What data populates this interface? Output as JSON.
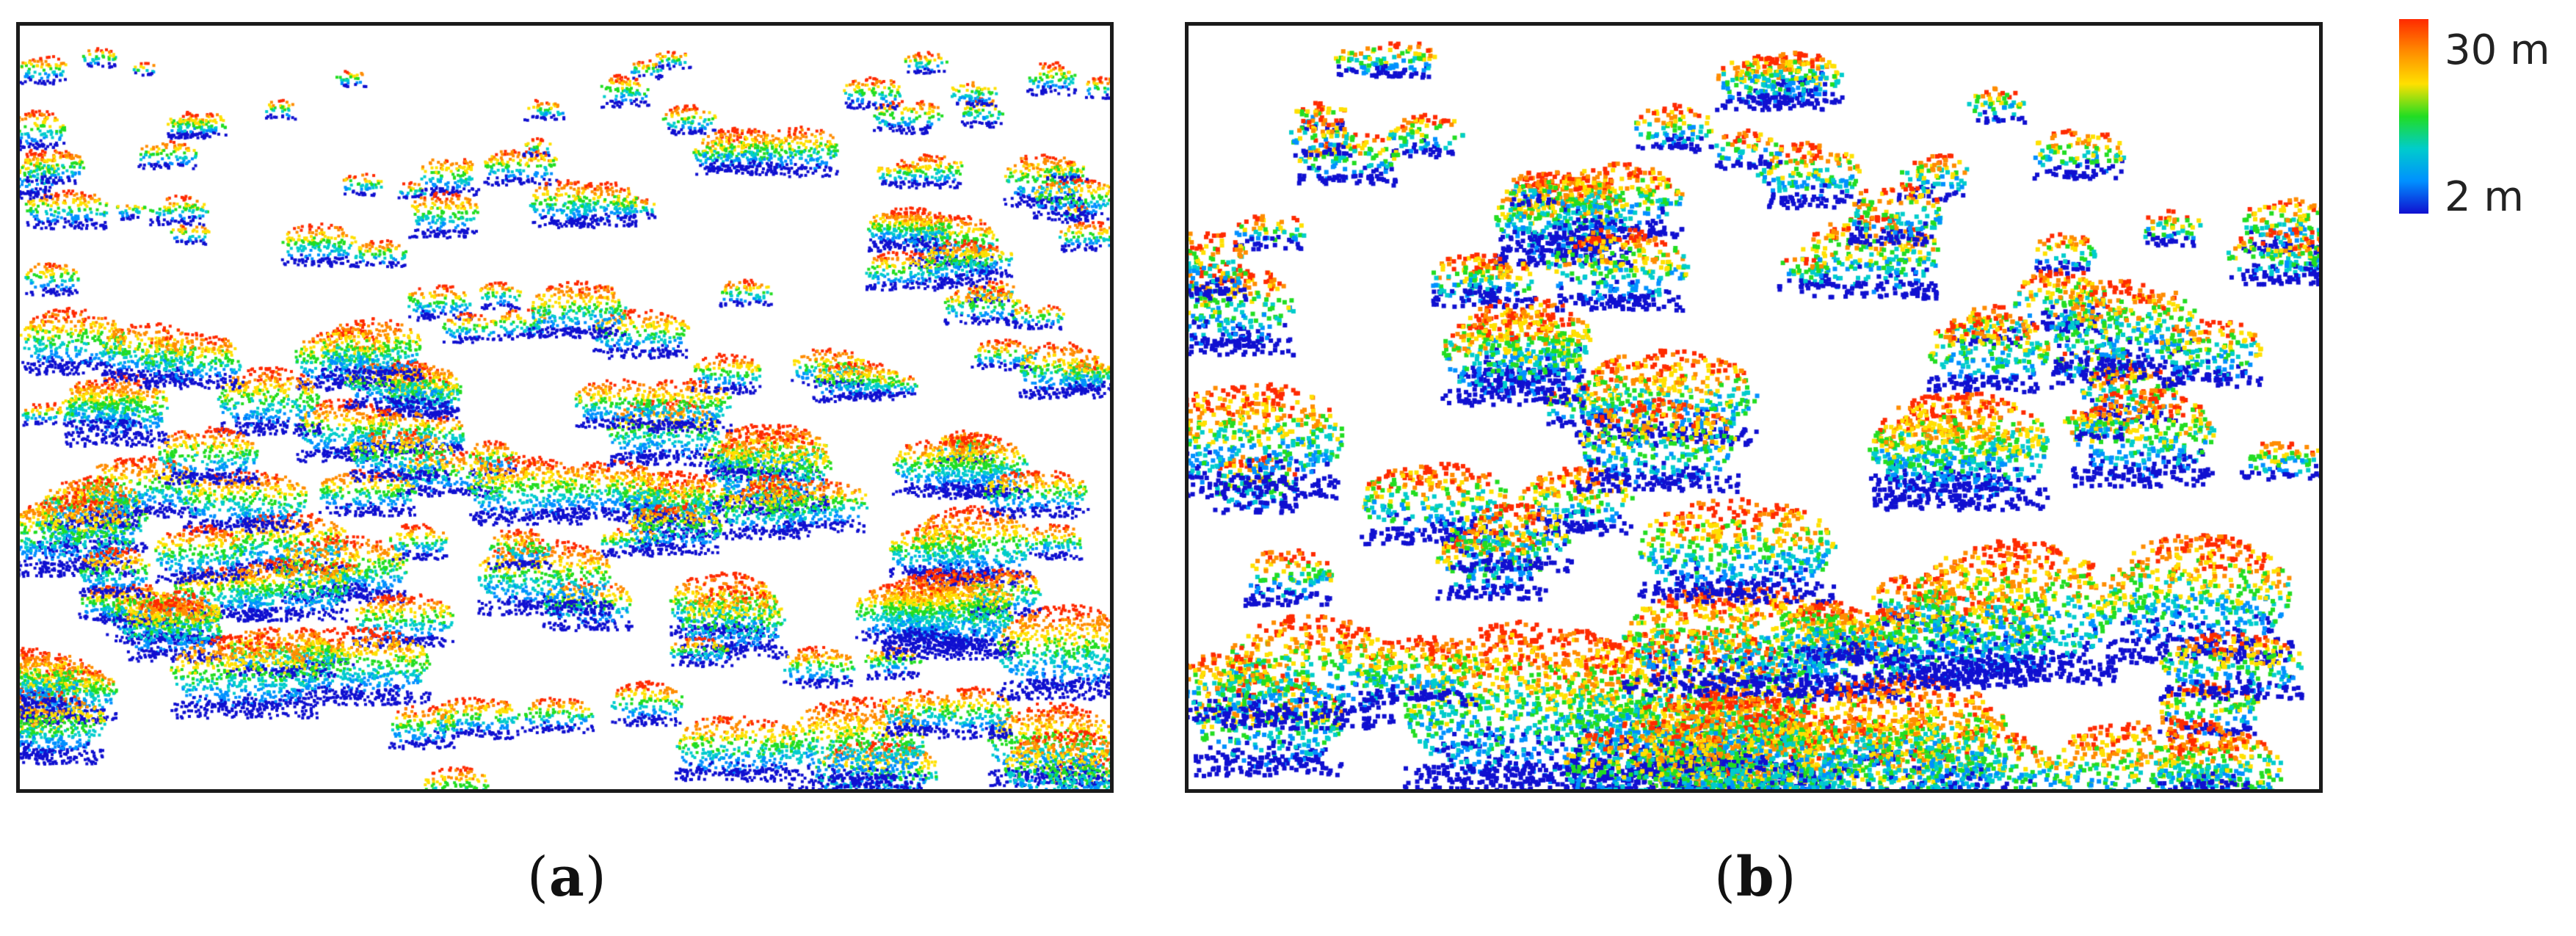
{
  "figure": {
    "panels": [
      {
        "id": "a",
        "caption_open": "(",
        "caption_letter": "a",
        "caption_close": ")"
      },
      {
        "id": "b",
        "caption_open": "(",
        "caption_letter": "b",
        "caption_close": ")"
      }
    ],
    "legend": {
      "max_label": "30 m",
      "min_label": "2 m",
      "colors": [
        "#ff2a00",
        "#ff8c00",
        "#ffe000",
        "#22dd22",
        "#00cccc",
        "#0090ff",
        "#1010d0"
      ]
    }
  }
}
